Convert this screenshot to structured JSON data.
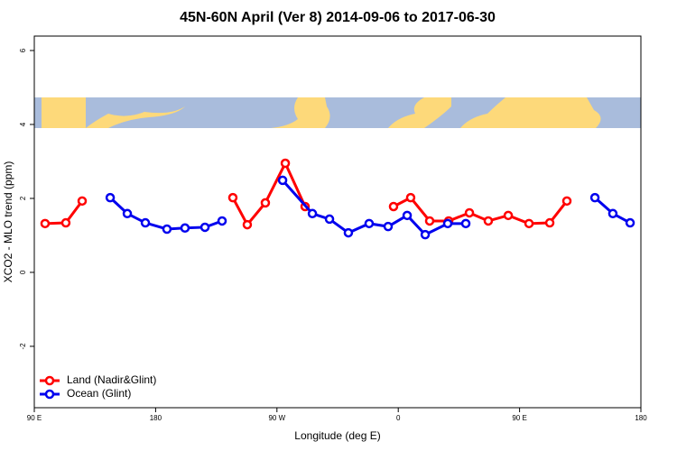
{
  "chart_data": {
    "type": "line",
    "title": "45N-60N April (Ver 8)   2014-09-06 to 2017-06-30",
    "xlabel": "Longitude (deg E)",
    "ylabel": "XCO2 - MLO trend (ppm)",
    "xlim": [
      90,
      540
    ],
    "xticks": [
      {
        "value": 90,
        "label": "90 E"
      },
      180,
      {
        "value": 270,
        "label": "90 W"
      },
      {
        "value": 360,
        "label": "0"
      },
      {
        "value": 450,
        "label": "90 E"
      },
      {
        "value": 540,
        "label": "180"
      }
    ],
    "ylim": [
      -3.66,
      6.39
    ],
    "yticks": [
      -2,
      0,
      2,
      4,
      6
    ],
    "legend": "bottom-left",
    "series": [
      {
        "name": "Land (Nadir&Glint)",
        "color": "#ff0000",
        "x": [
          98,
          113.4,
          125.5,
          null,
          237.3,
          248,
          261.4,
          276.2,
          290.9,
          null,
          356.5,
          369.2,
          383.3,
          397.4,
          412.8,
          426.8,
          441.6,
          457,
          472.4,
          485.1
        ],
        "values": [
          1.32,
          1.34,
          1.93,
          null,
          2.02,
          1.29,
          1.88,
          2.95,
          1.78,
          null,
          1.78,
          2.02,
          1.39,
          1.39,
          1.61,
          1.39,
          1.54,
          1.32,
          1.34,
          1.93
        ]
      },
      {
        "name": "Ocean (Glint)",
        "color": "#0000ee",
        "x": [
          146.3,
          159,
          172.4,
          188.4,
          201.8,
          216.6,
          229.3,
          null,
          274.2,
          296.3,
          309,
          323,
          338.4,
          352.5,
          366.6,
          380,
          396.7,
          410.1,
          null,
          505.9,
          519.2,
          532
        ],
        "values": [
          2.02,
          1.59,
          1.34,
          1.17,
          1.2,
          1.22,
          1.39,
          null,
          2.49,
          1.59,
          1.44,
          1.07,
          1.32,
          1.24,
          1.54,
          1.02,
          1.32,
          1.32,
          null,
          2.02,
          1.59,
          1.34
        ]
      }
    ]
  }
}
